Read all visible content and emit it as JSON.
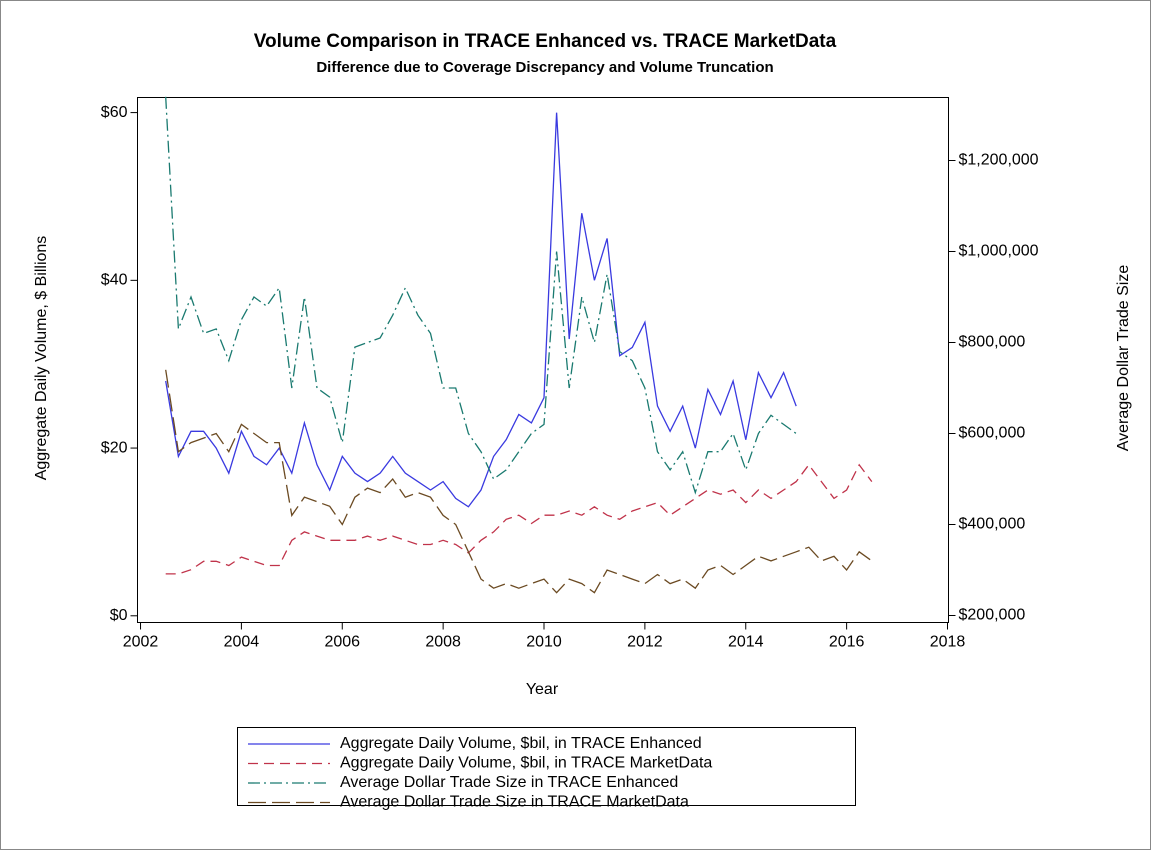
{
  "chart_data": {
    "type": "line",
    "title": "Volume Comparison in TRACE Enhanced vs. TRACE MarketData",
    "subtitle": "Difference due to Coverage Discrepancy and Volume Truncation",
    "xlabel": "Year",
    "ylabel": "Aggregate Daily Volume, $ Billions",
    "y2label": "Average Dollar Trade Size",
    "xlim": [
      2001.94,
      2018.02
    ],
    "xticks": [
      2002,
      2004,
      2006,
      2008,
      2010,
      2012,
      2014,
      2016,
      2018
    ],
    "ylim": [
      -0.8,
      61.8
    ],
    "yticks": [
      {
        "value": 0,
        "label": "$0"
      },
      {
        "value": 20,
        "label": "$20"
      },
      {
        "value": 40,
        "label": "$40"
      },
      {
        "value": 60,
        "label": "$60"
      }
    ],
    "y2lim": [
      184600,
      1338500
    ],
    "y2ticks": [
      {
        "value": 200000,
        "label": "$200,000"
      },
      {
        "value": 400000,
        "label": "$400,000"
      },
      {
        "value": 600000,
        "label": "$600,000"
      },
      {
        "value": 800000,
        "label": "$800,000"
      },
      {
        "value": 1000000,
        "label": "$1,000,000"
      },
      {
        "value": 1200000,
        "label": "$1,200,000"
      }
    ],
    "x": [
      2002.5,
      2002.75,
      2003,
      2003.25,
      2003.5,
      2003.75,
      2004,
      2004.25,
      2004.5,
      2004.75,
      2005,
      2005.25,
      2005.5,
      2005.75,
      2006,
      2006.25,
      2006.5,
      2006.75,
      2007,
      2007.25,
      2007.5,
      2007.75,
      2008,
      2008.25,
      2008.5,
      2008.75,
      2009,
      2009.25,
      2009.5,
      2009.75,
      2010,
      2010.25,
      2010.5,
      2010.75,
      2011,
      2011.25,
      2011.5,
      2011.75,
      2012,
      2012.25,
      2012.5,
      2012.75,
      2013,
      2013.25,
      2013.5,
      2013.75,
      2014,
      2014.25,
      2014.5,
      2014.75,
      2015,
      2015.25,
      2015.5,
      2015.75,
      2016,
      2016.25,
      2016.5
    ],
    "series": [
      {
        "name": "Aggregate Daily Volume, $bil, in TRACE Enhanced",
        "color": "#3a3ae0",
        "dash": "solid",
        "values": [
          28,
          19,
          22,
          22,
          20,
          17,
          22,
          19,
          18,
          20,
          17,
          23,
          18,
          15,
          19,
          17,
          16,
          17,
          19,
          17,
          16,
          15,
          16,
          14,
          13,
          15,
          19,
          21,
          24,
          23,
          26,
          60,
          33,
          48,
          40,
          45,
          31,
          32,
          35,
          25,
          22,
          25,
          20,
          27,
          24,
          28,
          21,
          29,
          26,
          29,
          25,
          null,
          null,
          null,
          null,
          null,
          null
        ]
      },
      {
        "name": "Aggregate Daily Volume, $bil, in TRACE MarketData",
        "color": "#c0334a",
        "dash": "dashed",
        "values": [
          5,
          5,
          5.5,
          6.5,
          6.5,
          6,
          7,
          6.5,
          6,
          6,
          9,
          10,
          9.5,
          9,
          9,
          9,
          9.5,
          9,
          9.5,
          9,
          8.5,
          8.5,
          9,
          8.5,
          7.5,
          9,
          10,
          11.5,
          12,
          11,
          12,
          12,
          12.5,
          12,
          13,
          12,
          11.5,
          12.5,
          13,
          13.5,
          12,
          13,
          14,
          15,
          14.5,
          15,
          13.5,
          15,
          14,
          15,
          16,
          18,
          16,
          14,
          15,
          18,
          16
        ]
      },
      {
        "name": "Average Dollar Trade Size in TRACE Enhanced",
        "color": "#1a7a70",
        "dash": "dashdot",
        "axis": "y2",
        "values": [
          1340000,
          830000,
          900000,
          820000,
          830000,
          760000,
          850000,
          900000,
          880000,
          920000,
          700000,
          900000,
          700000,
          680000,
          580000,
          790000,
          800000,
          810000,
          860000,
          920000,
          860000,
          820000,
          700000,
          700000,
          600000,
          560000,
          500000,
          520000,
          560000,
          600000,
          620000,
          1000000,
          700000,
          900000,
          800000,
          950000,
          780000,
          760000,
          700000,
          560000,
          520000,
          560000,
          470000,
          560000,
          560000,
          600000,
          520000,
          600000,
          640000,
          620000,
          600000,
          null,
          null,
          null,
          null,
          null,
          null
        ]
      },
      {
        "name": "Average Dollar Trade Size in TRACE MarketData",
        "color": "#6b4a22",
        "dash": "longdash",
        "axis": "y2",
        "values": [
          740000,
          560000,
          580000,
          590000,
          600000,
          560000,
          620000,
          600000,
          580000,
          580000,
          420000,
          460000,
          450000,
          440000,
          400000,
          460000,
          480000,
          470000,
          500000,
          460000,
          470000,
          460000,
          420000,
          400000,
          340000,
          280000,
          260000,
          270000,
          260000,
          270000,
          280000,
          250000,
          280000,
          270000,
          250000,
          300000,
          290000,
          280000,
          270000,
          290000,
          270000,
          280000,
          260000,
          300000,
          310000,
          290000,
          310000,
          330000,
          320000,
          330000,
          340000,
          350000,
          320000,
          330000,
          300000,
          340000,
          320000
        ]
      }
    ]
  }
}
